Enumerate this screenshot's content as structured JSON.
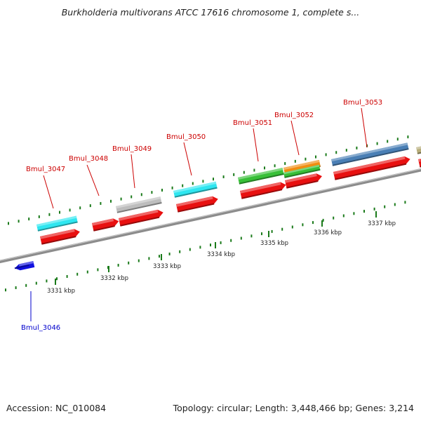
{
  "title": "Burkholderia multivorans ATCC 17616 chromosome 1, complete s...",
  "accession": "Accession: NC_010084",
  "summary": "Topology: circular; Length: 3,448,466 bp; Genes: 3,214",
  "colors": {
    "backbone": "#8c8c8c",
    "tick": "#1a7a1a",
    "label_forward": "#cc0000",
    "label_reverse": "#0000cc"
  },
  "kbp_ticks": [
    {
      "text": "3331 kbp"
    },
    {
      "text": "3332 kbp"
    },
    {
      "text": "3333 kbp"
    },
    {
      "text": "3334 kbp"
    },
    {
      "text": "3335 kbp"
    },
    {
      "text": "3336 kbp"
    },
    {
      "text": "3337 kbp"
    }
  ],
  "genes": [
    {
      "label": "Bmul_3046",
      "strand": "reverse",
      "color": "#1010e0",
      "label_color": "#0000cc"
    },
    {
      "label": "Bmul_3047",
      "strand": "forward",
      "color": "#2ee6f0",
      "label_color": "#cc0000"
    },
    {
      "label": "Bmul_3048",
      "strand": "forward",
      "color": "#e81010",
      "label_color": "#cc0000"
    },
    {
      "label": "Bmul_3049",
      "strand": "forward",
      "color": "#bdbdbd",
      "label_color": "#cc0000"
    },
    {
      "label": "Bmul_3050",
      "strand": "forward",
      "color": "#2ee6f0",
      "label_color": "#cc0000"
    },
    {
      "label": "Bmul_3051",
      "strand": "forward",
      "color": "#38c038",
      "label_color": "#cc0000"
    },
    {
      "label": "Bmul_3052",
      "strand": "forward",
      "color": "#f08c10",
      "label_color": "#cc0000"
    },
    {
      "label": "Bmul_3053",
      "strand": "forward",
      "color": "#4a7fb5",
      "label_color": "#cc0000"
    }
  ]
}
